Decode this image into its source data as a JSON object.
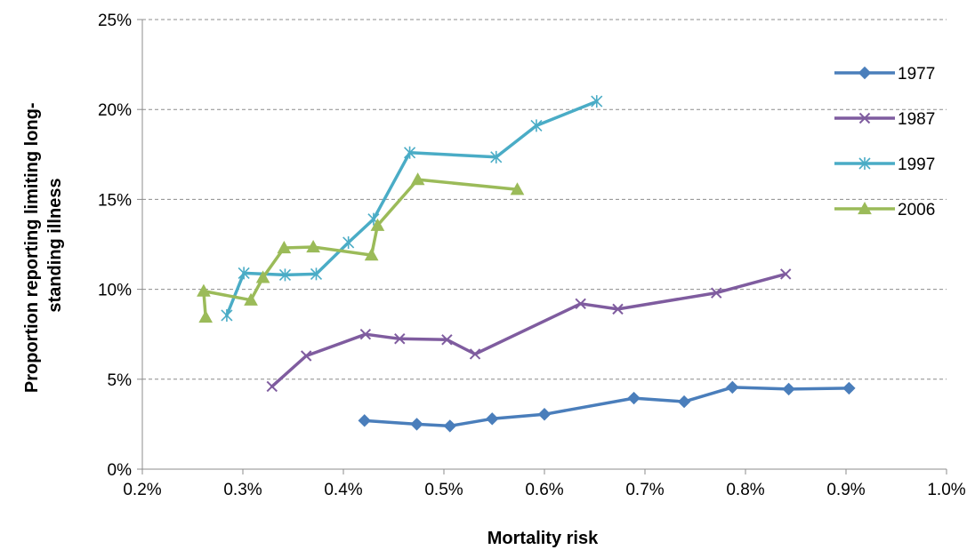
{
  "chart_data": {
    "type": "line",
    "xlabel": "Mortality risk",
    "ylabel": "Proportion reporting limiting long-standing illness",
    "ylabel_lines": [
      "Proportion reporting limiting long-",
      "standing illness"
    ],
    "xlim": [
      0.2,
      1.0
    ],
    "ylim": [
      0,
      25
    ],
    "x_ticks": [
      0.2,
      0.3,
      0.4,
      0.5,
      0.6,
      0.7,
      0.8,
      0.9,
      1.0
    ],
    "x_tick_labels": [
      "0.2%",
      "0.3%",
      "0.4%",
      "0.5%",
      "0.6%",
      "0.7%",
      "0.8%",
      "0.9%",
      "1.0%"
    ],
    "y_ticks": [
      0,
      5,
      10,
      15,
      20,
      25
    ],
    "y_tick_labels": [
      "0%",
      "5%",
      "10%",
      "15%",
      "20%",
      "25%"
    ],
    "grid": "horizontal dashed",
    "legend_position": "right",
    "series": [
      {
        "name": "1977",
        "color": "#4a7ebb",
        "marker": "diamond",
        "points": [
          [
            0.421,
            2.7
          ],
          [
            0.473,
            2.5
          ],
          [
            0.506,
            2.4
          ],
          [
            0.548,
            2.8
          ],
          [
            0.6,
            3.05
          ],
          [
            0.689,
            3.95
          ],
          [
            0.739,
            3.75
          ],
          [
            0.787,
            4.55
          ],
          [
            0.843,
            4.45
          ],
          [
            0.903,
            4.5
          ]
        ]
      },
      {
        "name": "1987",
        "color": "#7f5c9f",
        "marker": "x",
        "points": [
          [
            0.329,
            4.6
          ],
          [
            0.363,
            6.3
          ],
          [
            0.422,
            7.5
          ],
          [
            0.456,
            7.25
          ],
          [
            0.503,
            7.2
          ],
          [
            0.531,
            6.4
          ],
          [
            0.636,
            9.2
          ],
          [
            0.673,
            8.9
          ],
          [
            0.771,
            9.8
          ],
          [
            0.84,
            10.85
          ]
        ]
      },
      {
        "name": "1997",
        "color": "#4aacc6",
        "marker": "star",
        "points": [
          [
            0.284,
            8.55
          ],
          [
            0.301,
            10.9
          ],
          [
            0.342,
            10.8
          ],
          [
            0.373,
            10.85
          ],
          [
            0.405,
            12.6
          ],
          [
            0.43,
            13.9
          ],
          [
            0.466,
            17.6
          ],
          [
            0.552,
            17.35
          ],
          [
            0.592,
            19.1
          ],
          [
            0.652,
            20.45
          ]
        ]
      },
      {
        "name": "2006",
        "color": "#9bbb59",
        "marker": "triangle",
        "points": [
          [
            0.263,
            8.45
          ],
          [
            0.261,
            9.9
          ],
          [
            0.308,
            9.4
          ],
          [
            0.32,
            10.65
          ],
          [
            0.341,
            12.3
          ],
          [
            0.37,
            12.35
          ],
          [
            0.428,
            11.9
          ],
          [
            0.434,
            13.55
          ],
          [
            0.474,
            16.1
          ],
          [
            0.573,
            15.55
          ]
        ]
      }
    ]
  }
}
